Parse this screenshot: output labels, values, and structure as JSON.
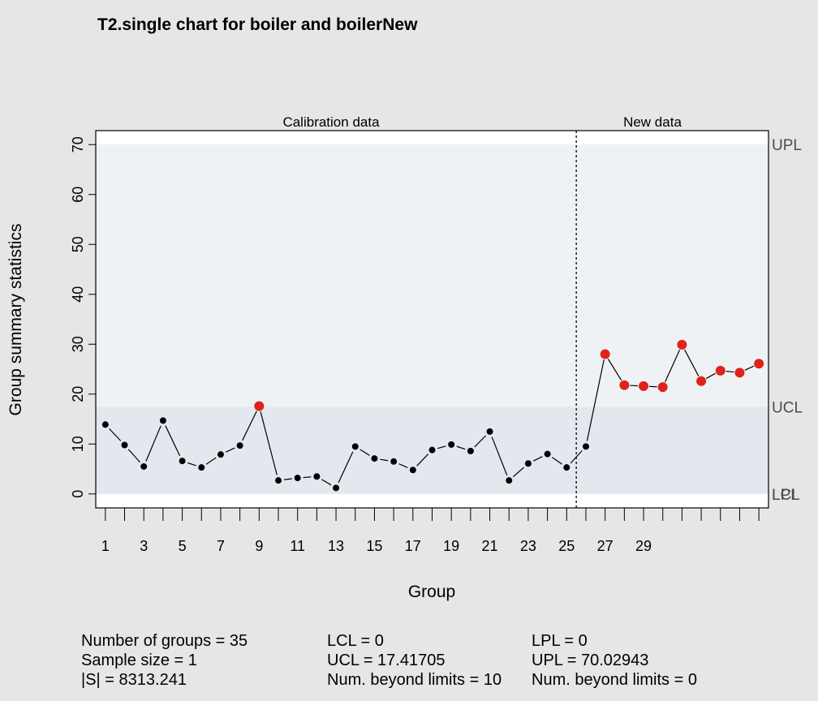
{
  "chart_data": {
    "type": "line",
    "title": "T2.single chart for boiler and boilerNew",
    "xlabel": "Group",
    "ylabel": "Group summary statistics",
    "section_labels": [
      "Calibration data",
      "New data"
    ],
    "calibration_groups": 25,
    "xlim": [
      0.5,
      35.5
    ],
    "ylim": [
      -2.8,
      72.8
    ],
    "y_ticks": [
      0,
      10,
      20,
      30,
      40,
      50,
      60,
      70
    ],
    "x_tick_labels": [
      "1",
      "3",
      "5",
      "7",
      "9",
      "11",
      "13",
      "15",
      "17",
      "19",
      "21",
      "23",
      "25",
      "27",
      "29"
    ],
    "x": [
      1,
      2,
      3,
      4,
      5,
      6,
      7,
      8,
      9,
      10,
      11,
      12,
      13,
      14,
      15,
      16,
      17,
      18,
      19,
      20,
      21,
      22,
      23,
      24,
      25,
      26,
      27,
      28,
      29,
      30,
      31,
      32,
      33,
      34,
      35
    ],
    "series": [
      {
        "values": [
          13.9,
          9.8,
          5.5,
          14.7,
          6.6,
          5.3,
          7.9,
          9.7,
          17.6,
          2.7,
          3.2,
          3.5,
          1.2,
          9.5,
          7.1,
          6.5,
          4.8,
          8.8,
          9.9,
          8.6,
          12.5,
          2.7,
          6.1,
          8.0,
          5.3,
          9.5,
          28.0,
          21.8,
          21.6,
          21.4,
          29.9,
          22.6,
          24.7,
          24.3,
          26.1
        ],
        "beyond_limits": [
          9,
          27,
          28,
          29,
          30,
          31,
          32,
          33,
          34,
          35
        ]
      }
    ],
    "limit_lines": {
      "UCL": 17.41705,
      "LCL": 0,
      "UPL": 70.02943,
      "LPL": 0
    },
    "limit_labels": {
      "upl": "UPL",
      "ucl": "UCL",
      "lcl": "LCL",
      "lpl": "LPL"
    },
    "colors": {
      "background": "#e6e6e6",
      "plot_area": "#ffffff",
      "prediction_band": "#eff2f4",
      "control_band": "#e2e8ee",
      "point_in_control": "#000000",
      "point_beyond_limits": "#e0221c",
      "limit_label": "#4d4d4d"
    }
  },
  "stats": {
    "col1": [
      "Number of groups = 35",
      "Sample size = 1",
      "|S| = 8313.241"
    ],
    "col2": [
      "LCL = 0",
      "UCL = 17.41705",
      "Num. beyond limits = 10"
    ],
    "col3": [
      "LPL = 0",
      "UPL = 70.02943",
      "Num. beyond limits = 0"
    ]
  }
}
